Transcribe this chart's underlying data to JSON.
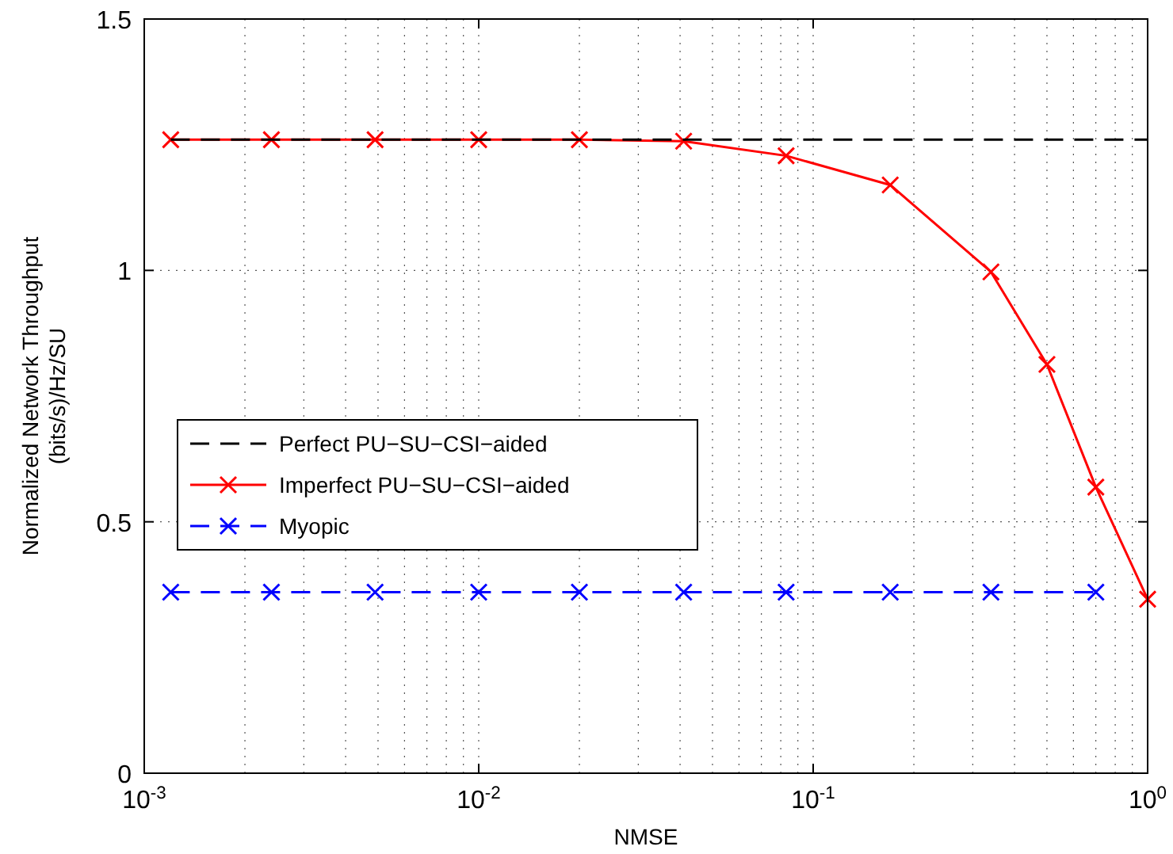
{
  "chart_data": {
    "type": "line",
    "xlabel": "NMSE",
    "ylabel": "Normalized Network Throughput\n(bits/s)/Hz/SU",
    "log": "x",
    "xlim": [
      0.001,
      1
    ],
    "ylim": [
      0,
      1.5
    ],
    "xticks": [
      {
        "value": 0.001,
        "label": "10$^{-3}$"
      },
      {
        "value": 0.01,
        "label": "10$^{-2}$"
      },
      {
        "value": 0.1,
        "label": "10$^{-1}$"
      },
      {
        "value": 1,
        "label": "10$^{0}$"
      }
    ],
    "yticks": [
      0,
      0.5,
      1,
      1.5
    ],
    "grid": true,
    "legend": "center left",
    "series": [
      {
        "name": "Perfect PU−SU−CSI−aided",
        "color": "#000000",
        "line_style": "dashed",
        "marker": "none",
        "x": [
          0.0012,
          1
        ],
        "values": [
          1.26,
          1.26
        ]
      },
      {
        "name": "Imperfect PU−SU−CSI−aided",
        "color": "#ff0000",
        "line_style": "solid",
        "marker": "cross",
        "x": [
          0.0012,
          0.0024,
          0.0049,
          0.01,
          0.02,
          0.041,
          0.083,
          0.17,
          0.34,
          0.5,
          0.7,
          1
        ],
        "values": [
          1.26,
          1.26,
          1.26,
          1.26,
          1.26,
          1.257,
          1.228,
          1.17,
          0.997,
          0.813,
          0.569,
          0.346
        ]
      },
      {
        "name": "Myopic",
        "color": "#0000ff",
        "line_style": "dashed",
        "marker": "cross",
        "x": [
          0.0012,
          0.0024,
          0.0049,
          0.01,
          0.02,
          0.041,
          0.083,
          0.17,
          0.34,
          0.7
        ],
        "values": [
          0.36,
          0.36,
          0.36,
          0.36,
          0.36,
          0.36,
          0.36,
          0.36,
          0.36,
          0.36
        ]
      }
    ]
  }
}
